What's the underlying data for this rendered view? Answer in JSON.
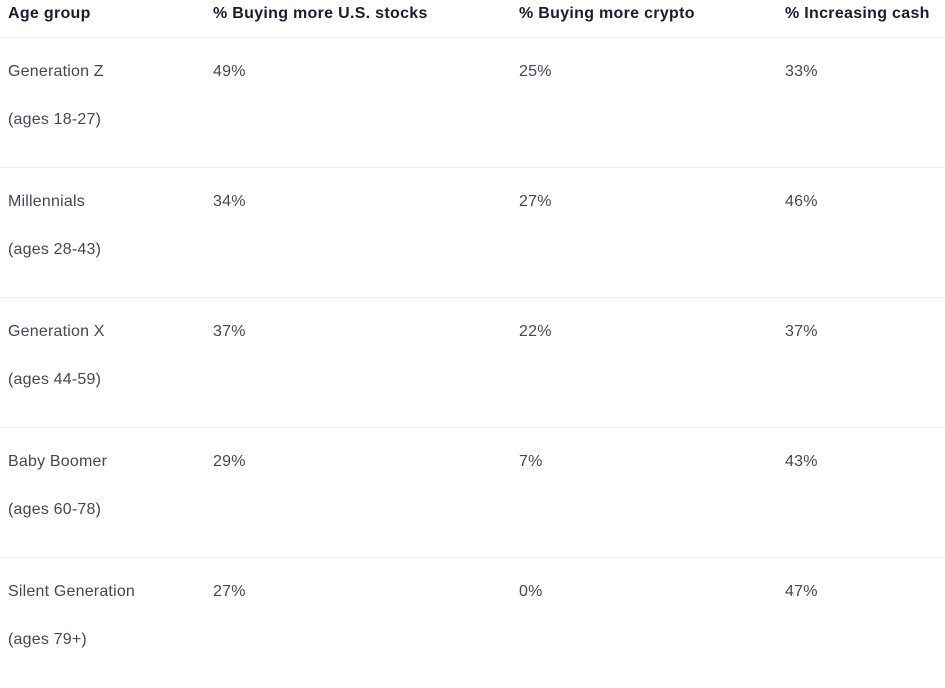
{
  "table": {
    "columns": [
      "Age group",
      "% Buying more U.S. stocks",
      "% Buying more crypto",
      "% Increasing cash"
    ],
    "rows": [
      {
        "group": "Generation Z",
        "ages": "(ages 18-27)",
        "stocks": "49%",
        "crypto": "25%",
        "cash": "33%"
      },
      {
        "group": "Millennials",
        "ages": "(ages 28-43)",
        "stocks": "34%",
        "crypto": "27%",
        "cash": "46%"
      },
      {
        "group": "Generation X",
        "ages": "(ages 44-59)",
        "stocks": "37%",
        "crypto": "22%",
        "cash": "37%"
      },
      {
        "group": "Baby Boomer",
        "ages": "(ages 60-78)",
        "stocks": "29%",
        "crypto": "7%",
        "cash": "43%"
      },
      {
        "group": "Silent Generation",
        "ages": "(ages 79+)",
        "stocks": "27%",
        "crypto": "0%",
        "cash": "47%"
      }
    ],
    "colors": {
      "header_text": "#1b1b35",
      "body_text": "#45455c",
      "border": "#ececee",
      "background": "#ffffff"
    }
  },
  "chart_data": {
    "type": "table",
    "title": "",
    "categories": [
      "Generation Z (ages 18-27)",
      "Millennials (ages 28-43)",
      "Generation X (ages 44-59)",
      "Baby Boomer (ages 60-78)",
      "Silent Generation (ages 79+)"
    ],
    "series": [
      {
        "name": "% Buying more U.S. stocks",
        "values": [
          49,
          34,
          37,
          29,
          27
        ]
      },
      {
        "name": "% Buying more crypto",
        "values": [
          25,
          27,
          22,
          7,
          0
        ]
      },
      {
        "name": "% Increasing cash",
        "values": [
          33,
          46,
          37,
          43,
          47
        ]
      }
    ]
  }
}
